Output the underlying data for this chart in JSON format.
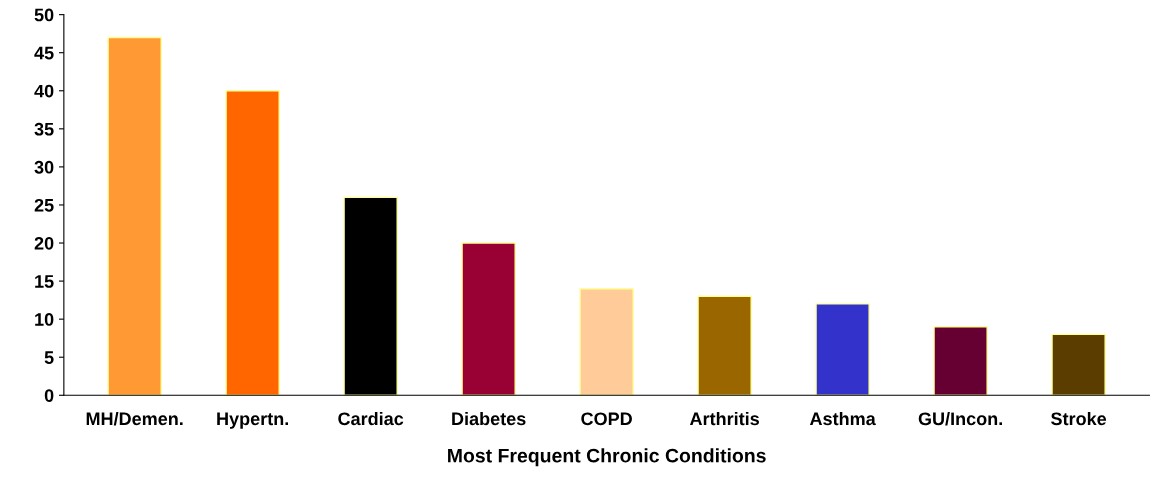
{
  "chart_data": {
    "type": "bar",
    "xlabel": "Most Frequent Chronic Conditions",
    "categories": [
      "MH/Demen.",
      "Hypertn.",
      "Cardiac",
      "Diabetes",
      "COPD",
      "Arthritis",
      "Asthma",
      "GU/Incon.",
      "Stroke"
    ],
    "values": [
      47,
      40,
      26,
      20,
      14,
      13,
      12,
      9,
      8
    ],
    "colors": [
      "#ff9933",
      "#ff6600",
      "#000000",
      "#990033",
      "#ffcc99",
      "#996600",
      "#3333cc",
      "#660033",
      "#5c3d00"
    ],
    "ylim": [
      0,
      50
    ],
    "yticks": [
      0,
      5,
      10,
      15,
      20,
      25,
      30,
      35,
      40,
      45,
      50
    ],
    "grid": false,
    "legend": false
  }
}
